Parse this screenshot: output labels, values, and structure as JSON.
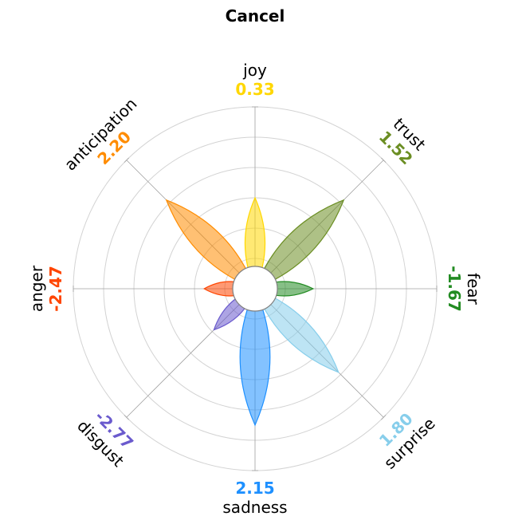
{
  "chart_data": {
    "type": "radial-petal",
    "title": "Cancel",
    "emotions": [
      {
        "name": "joy",
        "value": "0.33",
        "score": 0.33,
        "color": "#FFD700"
      },
      {
        "name": "trust",
        "value": "1.52",
        "score": 1.52,
        "color": "#6B8E23"
      },
      {
        "name": "fear",
        "value": "-1.67",
        "score": -1.67,
        "color": "#228B22"
      },
      {
        "name": "surprise",
        "value": "1.80",
        "score": 1.8,
        "color": "#87CEEB"
      },
      {
        "name": "sadness",
        "value": "2.15",
        "score": 2.15,
        "color": "#1E90FF"
      },
      {
        "name": "disgust",
        "value": "-2.77",
        "score": -2.77,
        "color": "#6A5ACD"
      },
      {
        "name": "anger",
        "value": "-2.47",
        "score": -2.47,
        "color": "#FF4500"
      },
      {
        "name": "anticipation",
        "value": "2.20",
        "score": 2.2,
        "color": "#FF8C00"
      }
    ],
    "petal_lengths": [
      0.5,
      0.69,
      0.32,
      0.65,
      0.75,
      0.32,
      0.28,
      0.69
    ],
    "grid_rings": 6,
    "grid": true
  }
}
